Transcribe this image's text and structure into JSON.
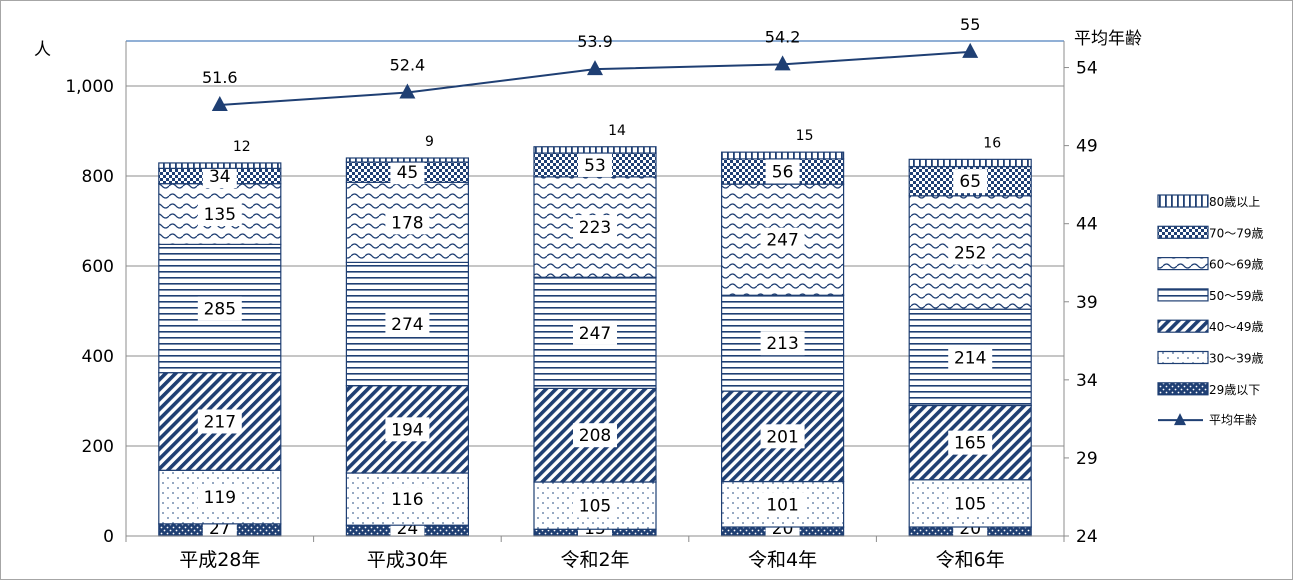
{
  "chart_data": {
    "type": "bar",
    "stacked": true,
    "categories": [
      "平成28年",
      "平成30年",
      "令和2年",
      "令和4年",
      "令和6年"
    ],
    "series": [
      {
        "name": "29歳以下",
        "values": [
          27,
          24,
          15,
          20,
          20
        ],
        "pattern": "dots-dark",
        "color": "#1f3f73"
      },
      {
        "name": "30～39歳",
        "values": [
          119,
          116,
          105,
          101,
          105
        ],
        "pattern": "dots-light",
        "color": "#3b5f8f"
      },
      {
        "name": "40～49歳",
        "values": [
          217,
          194,
          208,
          201,
          165
        ],
        "pattern": "diagonal",
        "color": "#1f3f73"
      },
      {
        "name": "50～59歳",
        "values": [
          285,
          274,
          247,
          213,
          214
        ],
        "pattern": "horizontal",
        "color": "#1f3f73"
      },
      {
        "name": "60～69歳",
        "values": [
          135,
          178,
          223,
          247,
          252
        ],
        "pattern": "wave",
        "color": "#1f3f73"
      },
      {
        "name": "70～79歳",
        "values": [
          34,
          45,
          53,
          56,
          65
        ],
        "pattern": "checker",
        "color": "#1f3f73"
      },
      {
        "name": "80歳以上",
        "values": [
          12,
          9,
          14,
          15,
          16
        ],
        "pattern": "vertical",
        "color": "#1f3f73"
      }
    ],
    "line_series": {
      "name": "平均年齢",
      "values": [
        51.6,
        52.4,
        53.9,
        54.2,
        55
      ],
      "color": "#1f3f73",
      "marker": "triangle"
    },
    "ylabel": "人",
    "y2label": "平均年齢",
    "ylim": [
      0,
      1100
    ],
    "yticks": [
      0,
      200,
      400,
      600,
      800,
      1000
    ],
    "ytick_labels": [
      "0",
      "200",
      "400",
      "600",
      "800",
      "1,000"
    ],
    "y2lim": [
      24,
      55.7
    ],
    "y2ticks": [
      24,
      29,
      34,
      39,
      44,
      49,
      54
    ],
    "grid": true,
    "legend_position": "right",
    "legend_order": [
      "80歳以上",
      "70～79歳",
      "60～69歳",
      "50～59歳",
      "40～49歳",
      "30～39歳",
      "29歳以下",
      "平均年齢"
    ]
  }
}
